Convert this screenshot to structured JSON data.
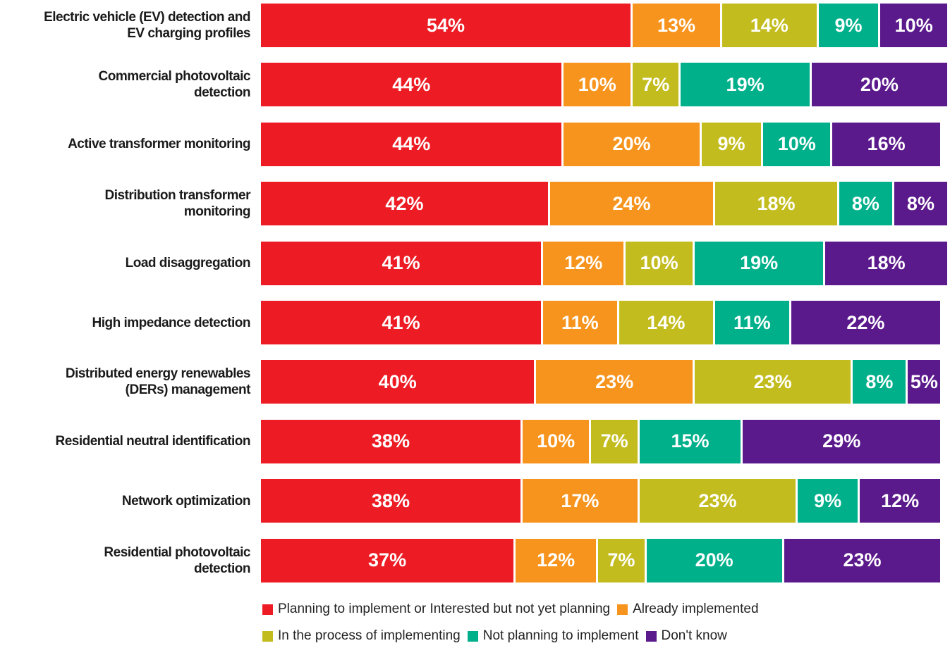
{
  "chart_data": {
    "type": "stacked-bar-horizontal",
    "categories": [
      "Electric vehicle (EV) detection and EV charging profiles",
      "Commercial photovoltaic detection",
      "Active transformer monitoring",
      "Distribution transformer monitoring",
      "Load disaggregation",
      "High impedance detection",
      "Distributed energy renewables (DERs) management",
      "Residential neutral identification",
      "Network optimization",
      "Residential photovoltaic detection"
    ],
    "xlim": [
      0,
      100
    ],
    "legend": "bottom",
    "series": [
      {
        "name": "Planning to implement or Interested but not yet planning",
        "color": "#ed1c24",
        "values": [
          54,
          44,
          44,
          42,
          41,
          41,
          40,
          38,
          38,
          37
        ],
        "value_labels": [
          "54%",
          "44%",
          "44%",
          "42%",
          "41%",
          "41%",
          "40%",
          "38%",
          "38%",
          "37%"
        ]
      },
      {
        "name": "Already implemented",
        "color": "#f7941d",
        "values": [
          13,
          10,
          20,
          24,
          12,
          11,
          23,
          10,
          17,
          12
        ],
        "value_labels": [
          "13%",
          "10%",
          "20%",
          "24%",
          "12%",
          "11%",
          "23%",
          "10%",
          "17%",
          "12%"
        ]
      },
      {
        "name": "In the process of implementing",
        "color": "#c3bc1e",
        "values": [
          14,
          7,
          9,
          18,
          10,
          14,
          23,
          7,
          23,
          7
        ],
        "value_labels": [
          "14%",
          "7%",
          "9%",
          "18%",
          "10%",
          "14%",
          "23%",
          "7%",
          "23%",
          "7%"
        ]
      },
      {
        "name": "Not planning to implement",
        "color": "#00b08b",
        "values": [
          9,
          19,
          10,
          8,
          19,
          11,
          8,
          15,
          9,
          20
        ],
        "value_labels": [
          "9%",
          "19%",
          "10%",
          "8%",
          "19%",
          "11%",
          "8%",
          "15%",
          "9%",
          "20%"
        ]
      },
      {
        "name": "Don't know",
        "color": "#5b1a8c",
        "values": [
          10,
          20,
          16,
          8,
          18,
          22,
          5,
          29,
          12,
          23
        ],
        "value_labels": [
          "10%",
          "20%",
          "16%",
          "8%",
          "18%",
          "22%",
          "5%",
          "29%",
          "12%",
          "23%"
        ]
      }
    ]
  }
}
